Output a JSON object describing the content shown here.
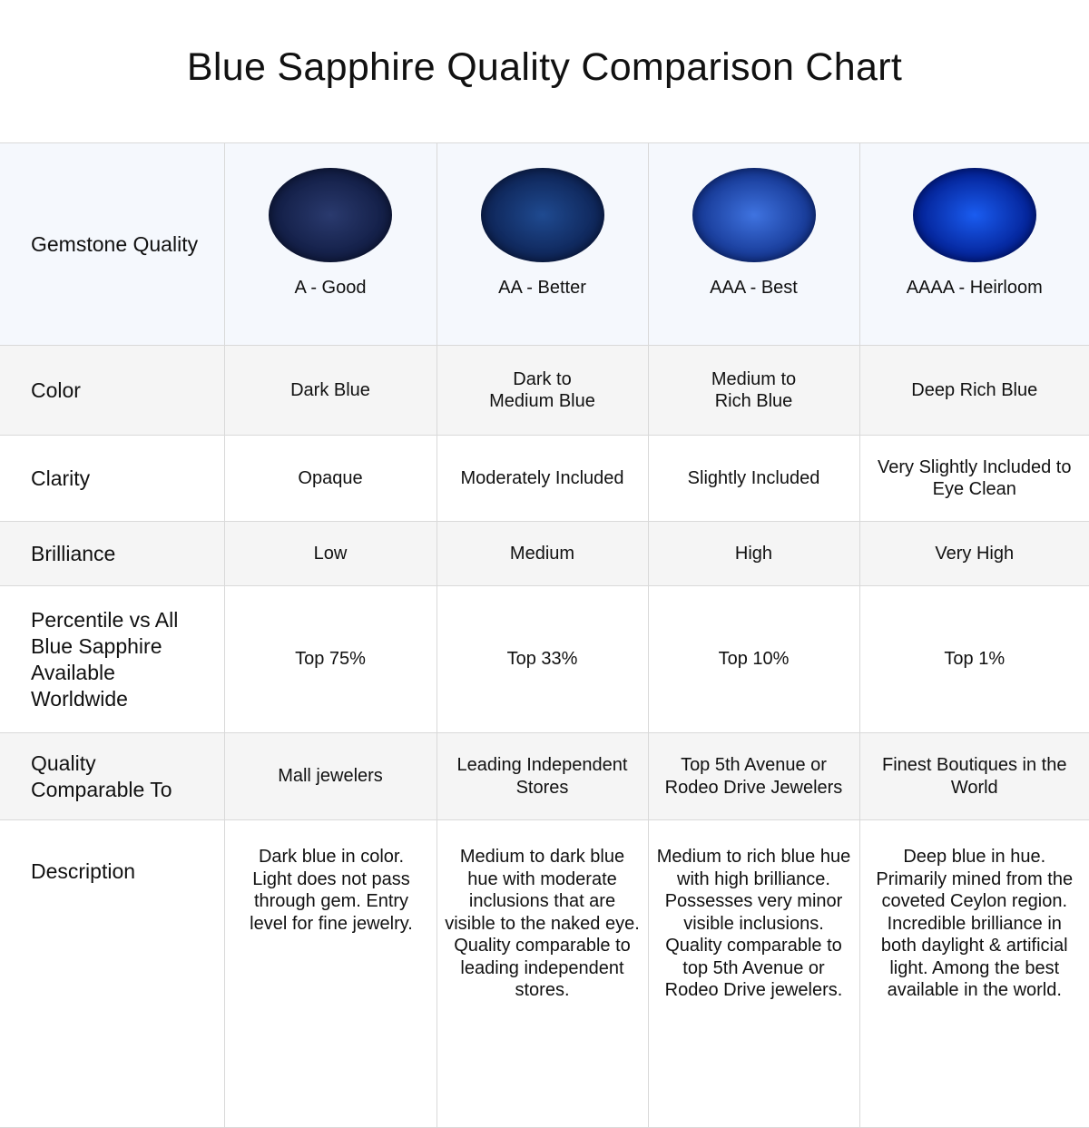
{
  "title": "Blue Sapphire Quality Comparison Chart",
  "rows": {
    "quality": {
      "label": "Gemstone Quality",
      "values": [
        "A - Good",
        "AA - Better",
        "AAA - Best",
        "AAAA - Heirloom"
      ]
    },
    "color": {
      "label": "Color",
      "values": [
        "Dark Blue",
        "Dark to Medium Blue",
        "Medium to Rich Blue",
        "Deep Rich Blue"
      ]
    },
    "clarity": {
      "label": "Clarity",
      "values": [
        "Opaque",
        "Moderately Included",
        "Slightly Included",
        "Very Slightly Included to Eye Clean"
      ]
    },
    "brilliance": {
      "label": "Brilliance",
      "values": [
        "Low",
        "Medium",
        "High",
        "Very High"
      ]
    },
    "percentile": {
      "label": "Percentile vs All Blue Sapphire Available Worldwide",
      "values": [
        "Top 75%",
        "Top 33%",
        "Top 10%",
        "Top 1%"
      ]
    },
    "comparable": {
      "label": "Quality Comparable To",
      "values": [
        "Mall jewelers",
        "Leading Independent Stores",
        "Top 5th Avenue or Rodeo Drive Jewelers",
        "Finest Boutiques in the World"
      ]
    },
    "description": {
      "label": "Description",
      "values": [
        "Dark blue in color. Light does not pass through gem. Entry level for fine jewelry.",
        "Medium to dark blue hue with moderate inclusions that are visible to the naked eye. Quality comparable to leading independent stores.",
        "Medium to rich blue hue with high brilliance. Possesses very minor visible inclusions. Quality comparable to top 5th Avenue or Rodeo Drive jewelers.",
        "Deep blue in hue. Primarily mined from the coveted Ceylon region. Incredible brilliance in both daylight & artificial light. Among the best available in the world."
      ]
    }
  },
  "gem_colors": [
    [
      "#2a3a6e",
      "#0f1a40"
    ],
    [
      "#1f4a90",
      "#0c2050"
    ],
    [
      "#3f73e0",
      "#10308a"
    ],
    [
      "#1a5cf0",
      "#001a8a"
    ]
  ]
}
